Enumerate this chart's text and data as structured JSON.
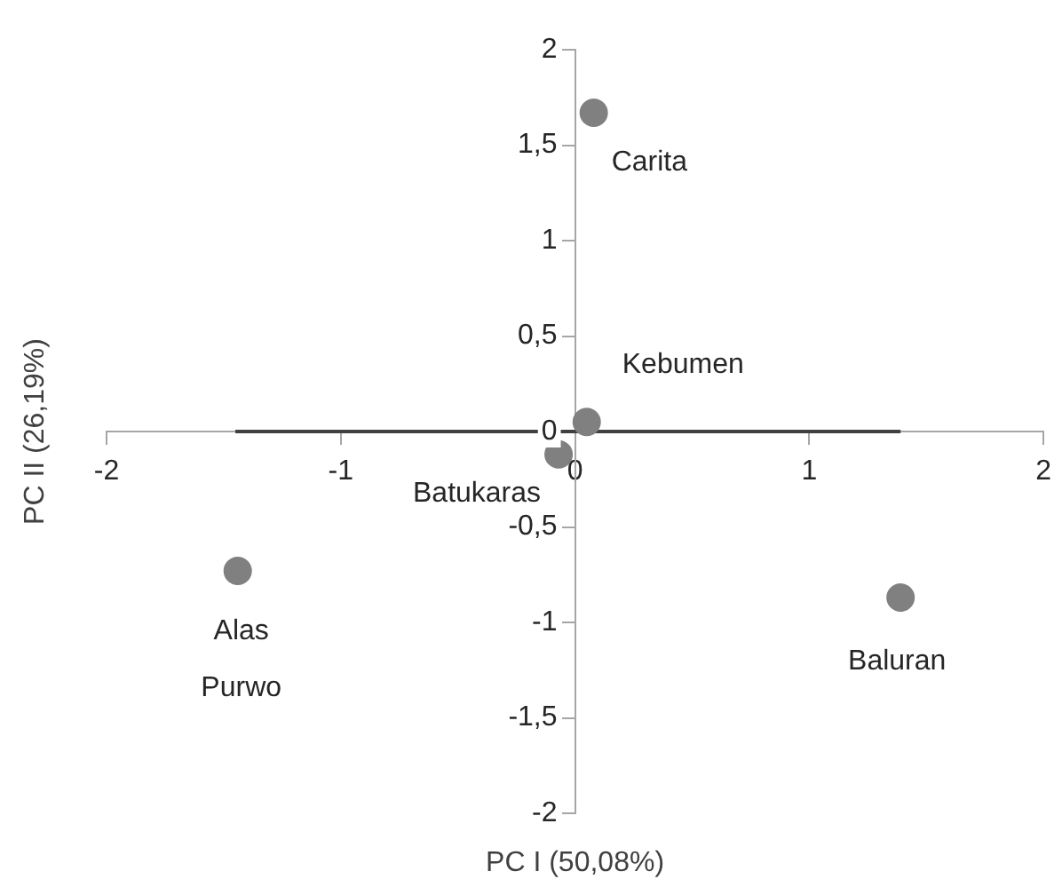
{
  "chart_data": {
    "type": "scatter",
    "xlabel": "PC I (50,08%)",
    "ylabel": "PC II (26,19%)",
    "xlim": [
      -2,
      2
    ],
    "xticks": [
      -2,
      -1,
      0,
      1,
      2
    ],
    "ylim": [
      -2,
      2
    ],
    "yticks": [
      {
        "value": -2,
        "label": "-2"
      },
      {
        "value": -1.5,
        "label": "-1,5"
      },
      {
        "value": -1,
        "label": "-1"
      },
      {
        "value": -0.5,
        "label": "-0,5"
      },
      {
        "value": 0,
        "label": "0"
      },
      {
        "value": 0.5,
        "label": "0,5"
      },
      {
        "value": 1,
        "label": "1"
      },
      {
        "value": 1.5,
        "label": "1,5"
      },
      {
        "value": 2,
        "label": "2"
      }
    ],
    "grid": false,
    "legend": false,
    "marker": "circle",
    "series": [
      {
        "type": "line",
        "color": "#404040",
        "x": [
          -1.45,
          1.39
        ],
        "values": [
          0,
          0
        ],
        "marker": "none"
      },
      {
        "type": "scatter",
        "color": "#808080",
        "x": [
          0.08,
          0.05,
          -0.07,
          -1.44,
          1.39
        ],
        "values": [
          1.67,
          0.05,
          -0.12,
          -0.73,
          -0.87
        ]
      }
    ],
    "annotations": [
      {
        "text": "Carita",
        "x": 0.08,
        "y": 1.67
      },
      {
        "text": "Kebumen",
        "x": 0.05,
        "y": 0.05
      },
      {
        "text": "Batukaras",
        "x": -0.07,
        "y": -0.12
      },
      {
        "text": "Alas Purwo",
        "x": -1.44,
        "y": -0.73
      },
      {
        "text": "Baluran",
        "x": 1.39,
        "y": -0.87
      }
    ]
  }
}
